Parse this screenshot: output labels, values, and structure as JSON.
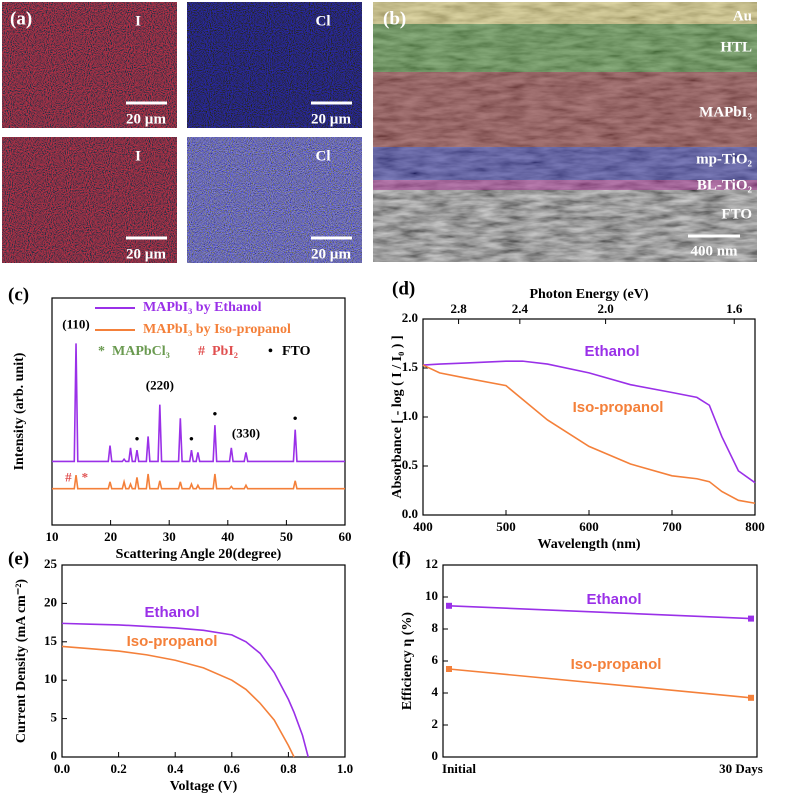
{
  "panel_a": {
    "label": "(a)",
    "maps": [
      {
        "element": "I",
        "scale": "20 µm"
      },
      {
        "element": "Cl",
        "scale": "20 µm"
      },
      {
        "element": "I",
        "scale": "20 µm"
      },
      {
        "element": "Cl",
        "scale": "20 µm"
      }
    ]
  },
  "panel_b": {
    "label": "(b)",
    "layers": [
      {
        "name": "Au",
        "color": "#d8cc7a"
      },
      {
        "name": "HTL",
        "color": "#4f8a3a"
      },
      {
        "name": "MAPbI₃",
        "color": "#8a3a3a"
      },
      {
        "name": "mp-TiO₂",
        "color": "#3a3aa0"
      },
      {
        "name": "BL-TiO₂",
        "color": "#a03a90"
      },
      {
        "name": "FTO",
        "color": "#5a5a5a"
      }
    ],
    "scale": "400 nm"
  },
  "chart_data": [
    {
      "type": "line",
      "panel": "(c)",
      "xlabel": "Scattering Angle 2θ(degree)",
      "ylabel": "Intensity (arb. unit)",
      "x": [
        10,
        13.8,
        14.1,
        14.4,
        19.6,
        19.9,
        20.2,
        22.0,
        22.3,
        22.6,
        23.1,
        23.4,
        23.7,
        24.2,
        24.5,
        24.8,
        26.1,
        26.4,
        26.7,
        28.1,
        28.4,
        28.7,
        31.6,
        31.9,
        32.2,
        33.5,
        33.8,
        34.1,
        34.6,
        34.9,
        35.2,
        37.5,
        37.8,
        38.1,
        40.3,
        40.6,
        40.9,
        42.8,
        43.1,
        43.4,
        51.2,
        51.5,
        51.8,
        60
      ],
      "series": [
        {
          "name": "MAPbI₃ by Ethanol",
          "color": "#9a30e8",
          "values": [
            28,
            28,
            80,
            28,
            28,
            35,
            28,
            28,
            29,
            28,
            28,
            34,
            28,
            28,
            33,
            28,
            28,
            39,
            28,
            28,
            53,
            28,
            28,
            47,
            28,
            28,
            33,
            28,
            28,
            32,
            28,
            28,
            44,
            28,
            28,
            34,
            28,
            28,
            32,
            28,
            28,
            42,
            28,
            28
          ]
        },
        {
          "name": "MAPbI₃ by Iso-propanol",
          "color": "#f4803a",
          "values": [
            16,
            16,
            22,
            16,
            16,
            19,
            16,
            16,
            19,
            16,
            16,
            18,
            16,
            16,
            21,
            16,
            16,
            22.5,
            16,
            16,
            19.5,
            16,
            16,
            19,
            16,
            16,
            18,
            16,
            16,
            17.5,
            16,
            16,
            22.5,
            16,
            16,
            17,
            16,
            16,
            17.5,
            16,
            16,
            19.5,
            16,
            16
          ]
        }
      ],
      "xlim": [
        10,
        60
      ],
      "xticks": [
        10,
        20,
        30,
        40,
        50,
        60
      ],
      "ylim": [
        0,
        100
      ],
      "annotations": [
        {
          "text": "(110)",
          "x": 14.1,
          "series": 0
        },
        {
          "text": "(220)",
          "x": 28.4,
          "series": 0
        },
        {
          "text": "(330)",
          "x": 43.1,
          "series": 0
        },
        {
          "text": "•",
          "x": 24.5,
          "series": 0
        },
        {
          "text": "•",
          "x": 33.8,
          "series": 0
        },
        {
          "text": "•",
          "x": 37.8,
          "series": 0
        },
        {
          "text": "•",
          "x": 51.5,
          "series": 0
        },
        {
          "text": "#",
          "x": 12.8,
          "series": 1
        },
        {
          "text": "*",
          "x": 15.6,
          "series": 1
        }
      ],
      "key": [
        {
          "symbol": "*",
          "text": "MAPbCl₃",
          "color": "#6a9a50"
        },
        {
          "symbol": "#",
          "text": "PbI₂",
          "color": "#e05050"
        },
        {
          "symbol": "•",
          "text": "FTO",
          "color": "#000000"
        }
      ]
    },
    {
      "type": "line",
      "panel": "(d)",
      "xlabel": "Wavelength (nm)",
      "ylabel": "Absorbance [ - log ( I / I₀ ) ]",
      "x2label": "Photon Energy (eV)",
      "x": [
        400,
        420,
        450,
        500,
        520,
        550,
        600,
        650,
        700,
        730,
        745,
        760,
        780,
        800
      ],
      "series": [
        {
          "name": "Ethanol",
          "color": "#9a30e8",
          "values": [
            1.53,
            1.54,
            1.55,
            1.57,
            1.57,
            1.54,
            1.45,
            1.33,
            1.25,
            1.2,
            1.12,
            0.8,
            0.45,
            0.33
          ]
        },
        {
          "name": "Iso-propanol",
          "color": "#f4803a",
          "values": [
            1.53,
            1.45,
            1.4,
            1.32,
            1.18,
            0.97,
            0.7,
            0.52,
            0.4,
            0.37,
            0.34,
            0.24,
            0.15,
            0.12
          ]
        }
      ],
      "xlim": [
        400,
        800
      ],
      "xticks": [
        400,
        500,
        600,
        700,
        800
      ],
      "ylim": [
        0,
        2
      ],
      "yticks": [
        {
          "value": 0,
          "label": "0.0"
        },
        0.5,
        {
          "value": 1,
          "label": "1.0"
        },
        1.5,
        {
          "value": 2,
          "label": "2.0"
        }
      ],
      "x2scale": "reciprocal",
      "x2lim": [
        3.1,
        1.55
      ],
      "x2ticks": [
        2.8,
        2.4,
        {
          "value": 2,
          "label": "2.0"
        },
        1.6
      ]
    },
    {
      "type": "line",
      "panel": "(e)",
      "xlabel": "Voltage (V)",
      "ylabel": "Current Density (mA cm⁻²)",
      "x": [
        0,
        0.1,
        0.2,
        0.3,
        0.4,
        0.5,
        0.6,
        0.65,
        0.7,
        0.75,
        0.8,
        0.82,
        0.85,
        0.87
      ],
      "series": [
        {
          "name": "Ethanol",
          "color": "#9a30e8",
          "values": [
            17.4,
            17.3,
            17.2,
            17,
            16.8,
            16.5,
            15.9,
            15,
            13.5,
            11,
            7.5,
            5.8,
            2.8,
            0
          ]
        },
        {
          "name": "Iso-propanol",
          "color": "#f4803a",
          "values": [
            14.4,
            14.1,
            13.8,
            13.3,
            12.6,
            11.6,
            10,
            8.8,
            7,
            4.8,
            1.5,
            0,
            null,
            null
          ]
        }
      ],
      "xlim": [
        0,
        1
      ],
      "xticks": [
        {
          "value": 0,
          "label": "0.0"
        },
        0.2,
        0.4,
        0.6,
        0.8,
        {
          "value": 1,
          "label": "1.0"
        }
      ],
      "ylim": [
        0,
        25
      ],
      "yticks": [
        0,
        5,
        10,
        15,
        20,
        25
      ]
    },
    {
      "type": "line",
      "panel": "(f)",
      "ylabel": "Efficiency η (%)",
      "categories": [
        "Initial",
        "30 Days"
      ],
      "series": [
        {
          "name": "Ethanol",
          "color": "#9a30e8",
          "values": [
            9.45,
            8.65
          ]
        },
        {
          "name": "Iso-propanol",
          "color": "#f4803a",
          "values": [
            5.5,
            3.7
          ]
        }
      ],
      "ylim": [
        0,
        12
      ],
      "yticks": [
        0,
        2,
        4,
        6,
        8,
        10,
        12
      ]
    }
  ]
}
